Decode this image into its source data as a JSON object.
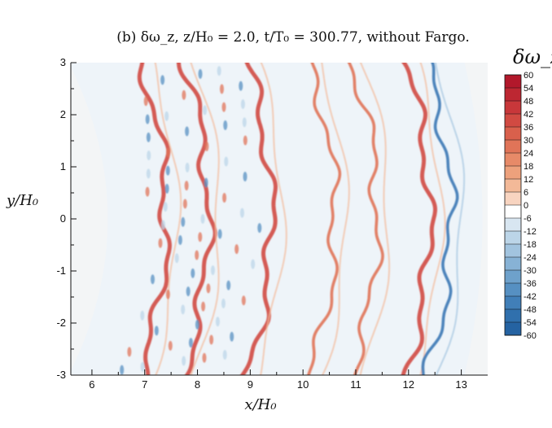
{
  "figure": {
    "title": "(b) δω_z, z/H₀ = 2.0, t/T₀ = 300.77, without Fargo."
  },
  "chart_data": {
    "type": "heatmap",
    "title": "(b) δω_z, z/H₀ = 2.0, t/T₀ = 300.77, without Fargo.",
    "xlabel": "x/H₀",
    "ylabel": "y/H₀",
    "xlim": [
      5.6,
      13.5
    ],
    "ylim": [
      -3,
      3
    ],
    "x_ticks": [
      "6",
      "7",
      "8",
      "9",
      "10",
      "11",
      "12",
      "13"
    ],
    "x_tick_values": [
      6,
      7,
      8,
      9,
      10,
      11,
      12,
      13
    ],
    "y_ticks": [
      "3",
      "2",
      "1",
      "0",
      "-1",
      "-2",
      "-3"
    ],
    "y_tick_values": [
      3,
      2,
      1,
      0,
      -1,
      -2,
      -3
    ],
    "colorbar": {
      "label": "δω_z",
      "range": [
        -60,
        60
      ],
      "levels": [
        60,
        54,
        48,
        42,
        36,
        30,
        24,
        18,
        12,
        6,
        0,
        -6,
        -12,
        -18,
        -24,
        -30,
        -36,
        -42,
        -48,
        -54,
        -60
      ],
      "level_labels": [
        "60",
        "54",
        "48",
        "42",
        "36",
        "30",
        "24",
        "18",
        "12",
        "6",
        "0",
        "-6",
        "-12",
        "-18",
        "-24",
        "-30",
        "-36",
        "-42",
        "-48",
        "-54",
        "-60"
      ],
      "colors": [
        "#b2182b",
        "#bd2732",
        "#c8373a",
        "#d14a42",
        "#d9604c",
        "#e07458",
        "#e78a68",
        "#eda17c",
        "#f3b998",
        "#f8d4c0",
        "#ffffff",
        "#d8e6f1",
        "#bcd5e8",
        "#a2c4df",
        "#87b2d5",
        "#6ea1cb",
        "#5690c2",
        "#417fb8",
        "#3070ad",
        "#2563a2",
        "#1c5896"
      ]
    },
    "streaks": [
      {
        "sign": "positive",
        "x_center": 7.4,
        "strength": "strong"
      },
      {
        "sign": "positive",
        "x_center": 8.2,
        "strength": "strong"
      },
      {
        "sign": "positive",
        "x_center": 9.4,
        "strength": "strong"
      },
      {
        "sign": "positive",
        "x_center": 10.6,
        "strength": "medium"
      },
      {
        "sign": "positive",
        "x_center": 11.4,
        "strength": "medium"
      },
      {
        "sign": "positive",
        "x_center": 12.4,
        "strength": "strong"
      },
      {
        "sign": "negative",
        "x_center": 12.8,
        "strength": "medium"
      }
    ]
  },
  "style": {
    "domain_fill": "#eef4f9",
    "background_band": "#f3f5f6",
    "positive_color": "#d9604c",
    "negative_color": "#3a78b5"
  }
}
